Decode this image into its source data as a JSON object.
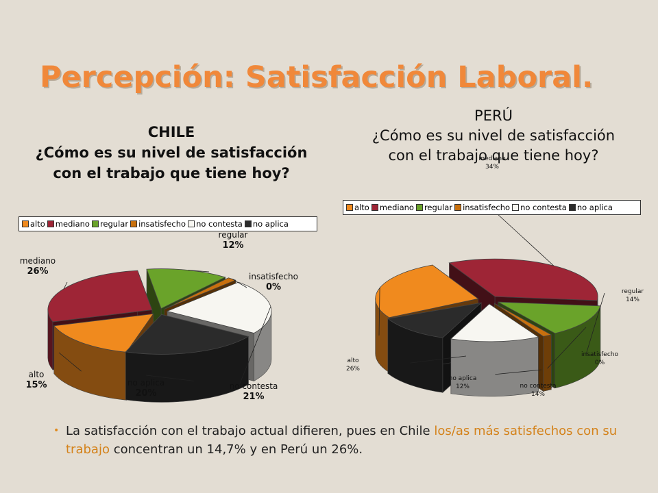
{
  "slide": {
    "title": "Percepción: Satisfacción Laboral.",
    "bullet": {
      "text_before": "La satisfacción con el trabajo actual difieren, pues en Chile ",
      "highlight": "los/as más satisfechos con su trabajo",
      "text_after": " concentran un 14,7% y en Perú un 26%."
    }
  },
  "chart_data": [
    {
      "id": "chile",
      "type": "pie",
      "title_lines": [
        "CHILE",
        "¿Cómo es su nivel de satisfacción",
        "con el trabajo que tiene hoy?"
      ],
      "legend_placement": "top",
      "slices": [
        {
          "label": "alto",
          "value": 15,
          "value_label": "15%",
          "color": "#f08a1e"
        },
        {
          "label": "mediano",
          "value": 26,
          "value_label": "26%",
          "color": "#9e2536"
        },
        {
          "label": "regular",
          "value": 12,
          "value_label": "12%",
          "color": "#6aa32a"
        },
        {
          "label": "insatisfecho",
          "value": 0,
          "value_label": "0%",
          "color": "#c8700e"
        },
        {
          "label": "no contesta",
          "value": 21,
          "value_label": "21%",
          "color": "#f7f6f1"
        },
        {
          "label": "no aplica",
          "value": 20,
          "value_label": "20%",
          "color": "#2b2b2b"
        }
      ]
    },
    {
      "id": "peru",
      "type": "pie",
      "title_lines": [
        "PERÚ",
        "¿Cómo es su nivel de satisfacción",
        "con el trabajo que tiene hoy?"
      ],
      "legend_placement": "top",
      "slices": [
        {
          "label": "alto",
          "value": 26,
          "value_label": "26%",
          "color": "#f08a1e"
        },
        {
          "label": "mediano",
          "value": 34,
          "value_label": "34%",
          "color": "#9e2536"
        },
        {
          "label": "regular",
          "value": 14,
          "value_label": "14%",
          "color": "#6aa32a"
        },
        {
          "label": "insatisfecho",
          "value": 0,
          "value_label": "0%",
          "color": "#c8700e"
        },
        {
          "label": "no contesta",
          "value": 14,
          "value_label": "14%",
          "color": "#f7f6f1"
        },
        {
          "label": "no aplica",
          "value": 12,
          "value_label": "12%",
          "color": "#2b2b2b"
        }
      ]
    }
  ]
}
